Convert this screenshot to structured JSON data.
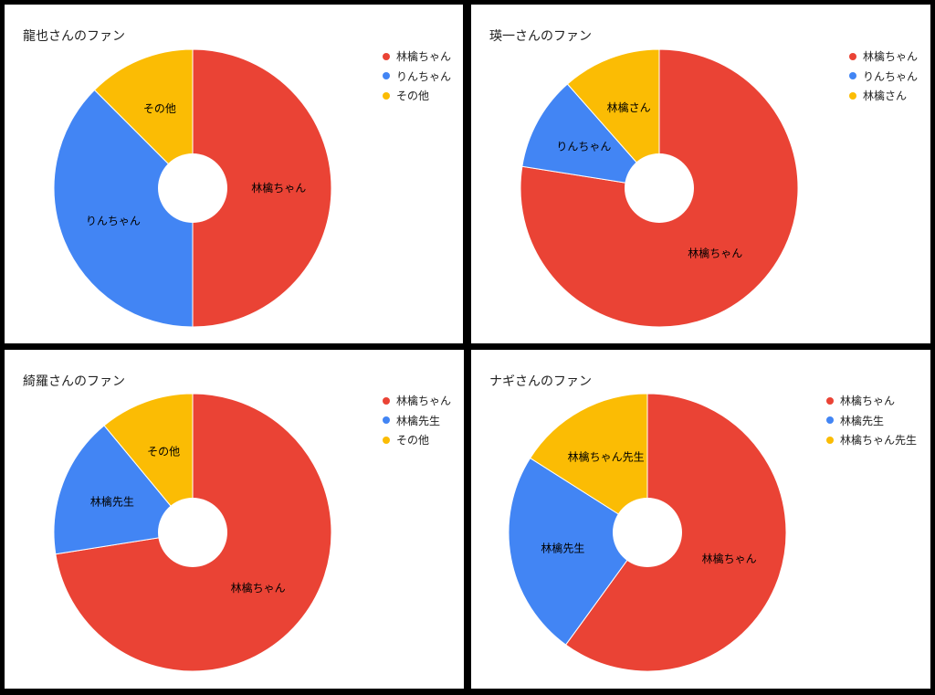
{
  "colors": {
    "red": "#EA4335",
    "blue": "#4285F4",
    "yellow": "#FBBC04"
  },
  "chart_data": [
    {
      "type": "pie",
      "title": "龍也さんのファン",
      "categories": [
        "林檎ちゃん",
        "りんちゃん",
        "その他"
      ],
      "values": [
        50,
        37.5,
        12.5
      ],
      "slice_labels": [
        "林檎ちゃん",
        "りんちゃん",
        "その他"
      ],
      "legend": [
        "林檎ちゃん",
        "りんちゃん",
        "その他"
      ],
      "legend_position": "right",
      "donut": true
    },
    {
      "type": "pie",
      "title": "瑛一さんのファン",
      "categories": [
        "林檎ちゃん",
        "りんちゃん",
        "林檎さん"
      ],
      "values": [
        77.5,
        11,
        11.5
      ],
      "slice_labels": [
        "林檎ちゃん",
        "りんちゃん",
        "林檎さん"
      ],
      "legend": [
        "林檎ちゃん",
        "りんちゃん",
        "林檎さん"
      ],
      "legend_position": "right",
      "donut": true
    },
    {
      "type": "pie",
      "title": "綺羅さんのファン",
      "categories": [
        "林檎ちゃん",
        "林檎先生",
        "その他"
      ],
      "values": [
        72.5,
        16.5,
        11
      ],
      "slice_labels": [
        "林檎ちゃん",
        "林檎先生",
        "その他"
      ],
      "legend": [
        "林檎ちゃん",
        "林檎先生",
        "その他"
      ],
      "legend_position": "right",
      "donut": true
    },
    {
      "type": "pie",
      "title": "ナギさんのファン",
      "categories": [
        "林檎ちゃん",
        "林檎先生",
        "林檎ちゃん先生"
      ],
      "values": [
        60,
        24,
        16
      ],
      "slice_labels": [
        "林檎ちゃん",
        "林檎先生",
        "林檎ちゃん先生"
      ],
      "legend": [
        "林檎ちゃん",
        "林檎先生",
        "林檎ちゃん先生"
      ],
      "legend_position": "right",
      "donut": true
    }
  ]
}
